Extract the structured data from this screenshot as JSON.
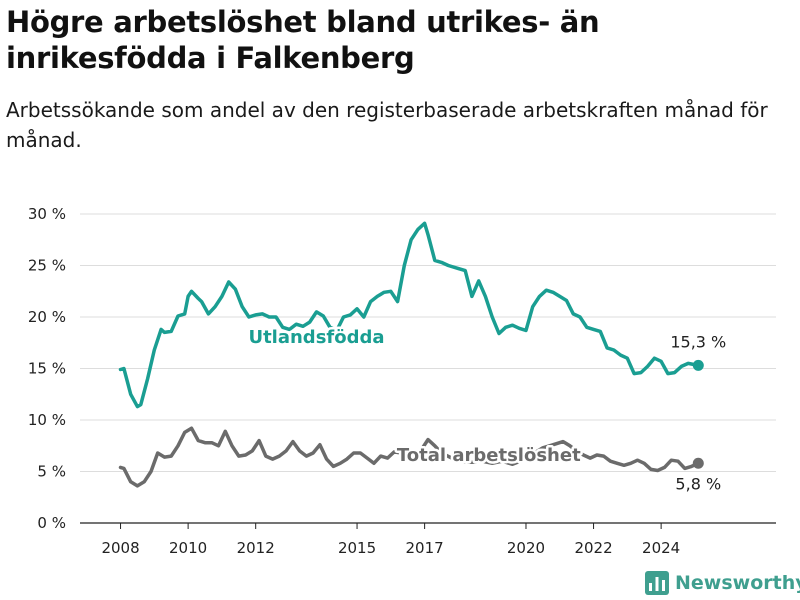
{
  "title": "Högre arbetslöshet bland utrikes- än inrikesfödda i Falkenberg",
  "subtitle": "Arbetssökande som andel av den registerbaserade arbetskraften månad för månad.",
  "brand": {
    "name": "Newsworthy",
    "icon": "newsworthy-logo-icon",
    "color": "#3f9f8f"
  },
  "chart_data": {
    "type": "line",
    "title": "Högre arbetslöshet bland utrikes- än inrikesfödda i Falkenberg",
    "subtitle": "Arbetssökande som andel av den registerbaserade arbetskraften månad för månad.",
    "xlabel": "",
    "ylabel": "",
    "xlim": [
      2006.8,
      2027.4
    ],
    "ylim": [
      0,
      30
    ],
    "x_ticks": [
      2008,
      2010,
      2012,
      2015,
      2017,
      2020,
      2022,
      2024
    ],
    "x_tick_labels": [
      "2008",
      "2010",
      "2012",
      "2015",
      "2017",
      "2020",
      "2022",
      "2024"
    ],
    "y_ticks": [
      0,
      5,
      10,
      15,
      20,
      25,
      30
    ],
    "y_tick_labels": [
      "0 %",
      "5 %",
      "10 %",
      "15 %",
      "20 %",
      "25 %",
      "30 %"
    ],
    "grid": "horizontal",
    "legend": "inline labels",
    "series": [
      {
        "name": "Utlandsfödda",
        "color": "#1a9e92",
        "label_pos": [
          2013.8,
          17.5
        ],
        "end_label": "15,3 %",
        "x": [
          2008.0,
          2008.1,
          2008.3,
          2008.5,
          2008.6,
          2008.8,
          2009.0,
          2009.2,
          2009.3,
          2009.5,
          2009.7,
          2009.9,
          2010.0,
          2010.1,
          2010.3,
          2010.4,
          2010.6,
          2010.8,
          2011.0,
          2011.2,
          2011.4,
          2011.6,
          2011.8,
          2012.0,
          2012.2,
          2012.4,
          2012.6,
          2012.8,
          2013.0,
          2013.2,
          2013.4,
          2013.6,
          2013.8,
          2014.0,
          2014.2,
          2014.4,
          2014.6,
          2014.8,
          2015.0,
          2015.2,
          2015.4,
          2015.6,
          2015.8,
          2016.0,
          2016.2,
          2016.4,
          2016.6,
          2016.8,
          2017.0,
          2017.1,
          2017.3,
          2017.5,
          2017.7,
          2018.0,
          2018.2,
          2018.4,
          2018.6,
          2018.8,
          2019.0,
          2019.2,
          2019.4,
          2019.6,
          2019.8,
          2020.0,
          2020.2,
          2020.4,
          2020.6,
          2020.8,
          2021.0,
          2021.2,
          2021.4,
          2021.6,
          2021.8,
          2022.0,
          2022.2,
          2022.4,
          2022.6,
          2022.8,
          2023.0,
          2023.2,
          2023.4,
          2023.6,
          2023.8,
          2024.0,
          2024.2,
          2024.4,
          2024.6,
          2024.8,
          2025.1
        ],
        "values": [
          14.9,
          15.0,
          12.5,
          11.3,
          11.5,
          14.0,
          16.8,
          18.8,
          18.5,
          18.6,
          20.1,
          20.3,
          22.0,
          22.5,
          21.8,
          21.5,
          20.3,
          21.0,
          22.0,
          23.4,
          22.7,
          21.0,
          20.0,
          20.2,
          20.3,
          20.0,
          20.0,
          19.0,
          18.8,
          19.3,
          19.1,
          19.5,
          20.5,
          20.1,
          19.0,
          18.7,
          20.0,
          20.2,
          20.8,
          20.0,
          21.5,
          22.0,
          22.4,
          22.5,
          21.5,
          25.0,
          27.5,
          28.5,
          29.1,
          28.0,
          25.5,
          25.3,
          25.0,
          24.7,
          24.5,
          22.0,
          23.5,
          22.0,
          20.0,
          18.4,
          19.0,
          19.2,
          18.9,
          18.7,
          21.0,
          22.0,
          22.6,
          22.4,
          22.0,
          21.6,
          20.3,
          20.0,
          19.0,
          18.8,
          18.6,
          17.0,
          16.8,
          16.3,
          16.0,
          14.5,
          14.6,
          15.2,
          16.0,
          15.7,
          14.5,
          14.6,
          15.2,
          15.5,
          15.3
        ]
      },
      {
        "name": "Total arbetslöshet",
        "color": "#6b6b6b",
        "label_pos": [
          2018.9,
          6.0
        ],
        "end_label": "5,8 %",
        "x": [
          2008.0,
          2008.1,
          2008.3,
          2008.5,
          2008.7,
          2008.9,
          2009.1,
          2009.3,
          2009.5,
          2009.7,
          2009.9,
          2010.1,
          2010.3,
          2010.5,
          2010.7,
          2010.9,
          2011.1,
          2011.3,
          2011.5,
          2011.7,
          2011.9,
          2012.1,
          2012.3,
          2012.5,
          2012.7,
          2012.9,
          2013.1,
          2013.3,
          2013.5,
          2013.7,
          2013.9,
          2014.1,
          2014.3,
          2014.5,
          2014.7,
          2014.9,
          2015.1,
          2015.3,
          2015.5,
          2015.7,
          2015.9,
          2016.1,
          2016.3,
          2016.5,
          2016.7,
          2016.9,
          2017.1,
          2017.3,
          2017.5,
          2017.8,
          2018.1,
          2018.4,
          2018.7,
          2019.0,
          2019.3,
          2019.6,
          2019.9,
          2020.1,
          2020.3,
          2020.5,
          2020.7,
          2020.9,
          2021.1,
          2021.3,
          2021.5,
          2021.7,
          2021.9,
          2022.1,
          2022.3,
          2022.5,
          2022.7,
          2022.9,
          2023.1,
          2023.3,
          2023.5,
          2023.7,
          2023.9,
          2024.1,
          2024.3,
          2024.5,
          2024.7,
          2024.9,
          2025.1
        ],
        "values": [
          5.4,
          5.3,
          4.0,
          3.6,
          4.0,
          5.0,
          6.8,
          6.4,
          6.5,
          7.5,
          8.8,
          9.2,
          8.0,
          7.8,
          7.8,
          7.5,
          8.9,
          7.5,
          6.5,
          6.6,
          7.0,
          8.0,
          6.5,
          6.2,
          6.5,
          7.0,
          7.9,
          7.0,
          6.5,
          6.8,
          7.6,
          6.2,
          5.5,
          5.8,
          6.2,
          6.8,
          6.8,
          6.3,
          5.8,
          6.5,
          6.3,
          6.9,
          6.8,
          6.5,
          6.1,
          7.1,
          8.1,
          7.5,
          6.8,
          6.3,
          6.0,
          5.9,
          6.0,
          5.8,
          6.0,
          5.7,
          6.1,
          6.6,
          6.9,
          7.3,
          7.5,
          7.7,
          7.9,
          7.5,
          7.0,
          6.6,
          6.3,
          6.6,
          6.5,
          6.0,
          5.8,
          5.6,
          5.8,
          6.1,
          5.8,
          5.2,
          5.1,
          5.4,
          6.1,
          6.0,
          5.3,
          5.5,
          5.8
        ]
      }
    ]
  }
}
